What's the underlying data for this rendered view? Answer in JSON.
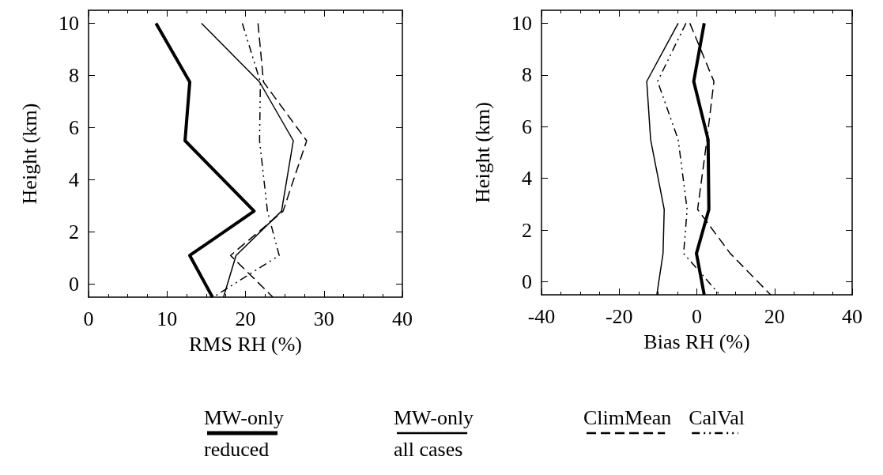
{
  "chart_data": [
    {
      "type": "line",
      "xlabel": "RMS RH (%)",
      "ylabel": "Height (km)",
      "xlim": [
        0,
        40
      ],
      "xticks": [
        0,
        10,
        20,
        30,
        40
      ],
      "ylim": [
        -0.5,
        10.5
      ],
      "yticks": [
        0,
        2,
        4,
        6,
        8,
        10
      ],
      "grid": false,
      "legend": "bottom",
      "marker": "none",
      "series": [
        {
          "name": "MW-only\nreduced",
          "color": "#000000",
          "line_style": "solid",
          "x": [
            8.6,
            12.9,
            12.3,
            21.1,
            12.9,
            15.8
          ],
          "values": [
            10,
            7.75,
            5.5,
            2.8,
            1.1,
            -0.5
          ]
        },
        {
          "name": "MW-only\nall cases",
          "color": "#000000",
          "line_style": "solid",
          "x": [
            14.4,
            21.8,
            26.1,
            24.6,
            18.8,
            17.2
          ],
          "values": [
            10,
            7.75,
            5.5,
            2.8,
            1.1,
            -0.5
          ]
        },
        {
          "name": "ClimMean",
          "color": "#000000",
          "line_style": "dashed",
          "x": [
            21.6,
            22.3,
            27.8,
            24.8,
            18.1,
            23.5
          ],
          "values": [
            10,
            7.75,
            5.5,
            2.8,
            1.1,
            -0.5
          ]
        },
        {
          "name": "CalVal",
          "color": "#000000",
          "line_style": "dashdot",
          "x": [
            19.6,
            21.9,
            21.8,
            22.8,
            24.3,
            15.9
          ],
          "values": [
            10,
            7.75,
            5.5,
            2.8,
            1.1,
            -0.5
          ]
        }
      ]
    },
    {
      "type": "line",
      "xlabel": "Bias RH (%)",
      "ylabel": "Height (km)",
      "xlim": [
        -40,
        40
      ],
      "xticks": [
        -40,
        -20,
        0,
        20,
        40
      ],
      "ylim": [
        -0.5,
        10.5
      ],
      "yticks": [
        0,
        2,
        4,
        6,
        8,
        10
      ],
      "grid": false,
      "marker": "none",
      "series": [
        {
          "color": "#000000",
          "line_style": "solid",
          "x": [
            1.9,
            -0.8,
            2.9,
            3.1,
            -0.1,
            1.9
          ],
          "values": [
            10,
            7.75,
            5.5,
            2.8,
            1.1,
            -0.5
          ]
        },
        {
          "color": "#000000",
          "line_style": "solid",
          "x": [
            -4.8,
            -12.9,
            -11.9,
            -8.4,
            -8.7,
            -10.3
          ],
          "values": [
            10,
            7.75,
            5.5,
            2.8,
            1.1,
            -0.5
          ]
        },
        {
          "color": "#000000",
          "line_style": "dashed",
          "x": [
            -1.8,
            4.4,
            2.6,
            0.2,
            8.6,
            19
          ],
          "values": [
            10,
            7.75,
            5.5,
            2.8,
            1.1,
            -0.5
          ]
        },
        {
          "color": "#000000",
          "line_style": "dashdot",
          "x": [
            -2.8,
            -10.1,
            -4.8,
            -2.5,
            -3.4,
            5.9
          ],
          "values": [
            10,
            7.75,
            5.5,
            2.8,
            1.1,
            -0.5
          ]
        }
      ]
    }
  ]
}
